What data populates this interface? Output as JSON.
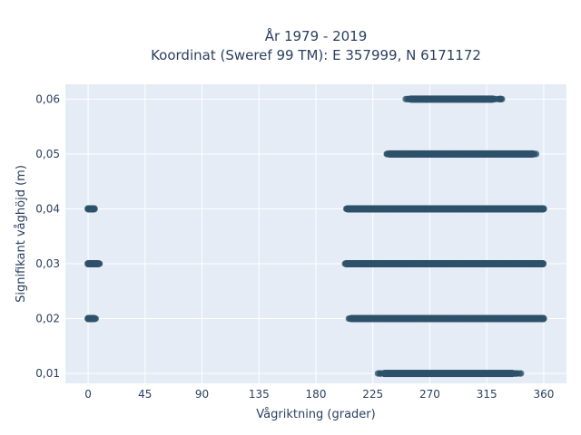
{
  "chart_data": {
    "type": "scatter",
    "title_line1": "År 1979 - 2019",
    "title_line2": "Koordinat (Sweref 99 TM): E 357999, N 6171172",
    "xlabel": "Vågriktning (grader)",
    "ylabel": "Signifikant våghöjd (m)",
    "xlim": [
      -18,
      378
    ],
    "ylim": [
      0.0082,
      0.0627
    ],
    "x_ticks": [
      0,
      45,
      90,
      135,
      180,
      225,
      270,
      315,
      360
    ],
    "x_tick_labels": [
      "0",
      "45",
      "90",
      "135",
      "180",
      "225",
      "270",
      "315",
      "360"
    ],
    "y_ticks": [
      0.01,
      0.02,
      0.03,
      0.04,
      0.05,
      0.06
    ],
    "y_tick_labels": [
      "0,01",
      "0,02",
      "0,03",
      "0,04",
      "0,05",
      "0,06"
    ],
    "grid": true,
    "marker_color": "#2e5169",
    "plot_bg": "#e5ecf6",
    "bands": [
      {
        "y": 0.06,
        "x_min": 251,
        "x_max": 327,
        "dense_min": 255,
        "dense_max": 320
      },
      {
        "y": 0.05,
        "x_min": 236,
        "x_max": 354,
        "dense_min": 238,
        "dense_max": 352
      },
      {
        "y": 0.04,
        "x_min": 0,
        "x_max": 5,
        "dense_min": 0,
        "dense_max": 5
      },
      {
        "y": 0.04,
        "x_min": 204,
        "x_max": 360,
        "dense_min": 205,
        "dense_max": 360
      },
      {
        "y": 0.03,
        "x_min": 0,
        "x_max": 9,
        "dense_min": 0,
        "dense_max": 8
      },
      {
        "y": 0.03,
        "x_min": 203,
        "x_max": 360,
        "dense_min": 204,
        "dense_max": 360
      },
      {
        "y": 0.02,
        "x_min": 0,
        "x_max": 6,
        "dense_min": 0,
        "dense_max": 5
      },
      {
        "y": 0.02,
        "x_min": 206,
        "x_max": 360,
        "dense_min": 208,
        "dense_max": 360
      },
      {
        "y": 0.01,
        "x_min": 229,
        "x_max": 342,
        "dense_min": 234,
        "dense_max": 336
      }
    ]
  }
}
